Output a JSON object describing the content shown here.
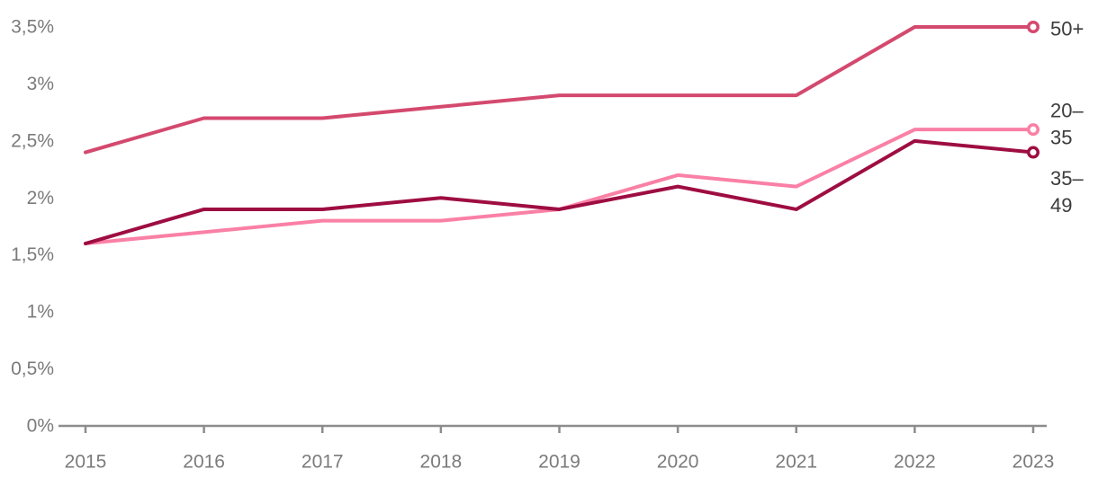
{
  "chart_data": {
    "type": "line",
    "title": "",
    "xlabel": "",
    "ylabel": "",
    "unit": "%",
    "decimal_separator": ",",
    "grid": false,
    "legend_position": "right-of-line-ends",
    "categories": [
      "2015",
      "2016",
      "2017",
      "2018",
      "2019",
      "2020",
      "2021",
      "2022",
      "2023"
    ],
    "ylim": [
      0,
      3.5
    ],
    "y_ticks": [
      {
        "value": 3.5,
        "label": "3,5%"
      },
      {
        "value": 3.0,
        "label": "3%"
      },
      {
        "value": 2.5,
        "label": "2,5%"
      },
      {
        "value": 2.0,
        "label": "2%"
      },
      {
        "value": 1.5,
        "label": "1,5%"
      },
      {
        "value": 1.0,
        "label": "1%"
      },
      {
        "value": 0.5,
        "label": "0,5%"
      },
      {
        "value": 0.0,
        "label": "0%"
      }
    ],
    "series": [
      {
        "name": "50+",
        "label_lines": [
          "50+"
        ],
        "color": "#d4496e",
        "end_marker": "open-circle",
        "values": [
          2.4,
          2.7,
          2.7,
          2.8,
          2.9,
          2.9,
          2.9,
          3.5,
          3.5
        ]
      },
      {
        "name": "20–35",
        "label_lines": [
          "20–",
          "35"
        ],
        "color": "#fa80a5",
        "end_marker": "open-circle",
        "values": [
          1.6,
          1.7,
          1.8,
          1.8,
          1.9,
          2.2,
          2.1,
          2.6,
          2.6
        ]
      },
      {
        "name": "35–49",
        "label_lines": [
          "35–",
          "49"
        ],
        "color": "#9e0d42",
        "end_marker": "open-circle",
        "values": [
          1.6,
          1.9,
          1.9,
          2.0,
          1.9,
          2.1,
          1.9,
          2.5,
          2.4
        ]
      }
    ]
  },
  "colors": {
    "background": "#ffffff",
    "axis_line": "#8c8c8c",
    "axis_tick_label": "#7b7b7b",
    "legend_label": "#3c3c3c",
    "marker_fill": "#ffffff"
  }
}
